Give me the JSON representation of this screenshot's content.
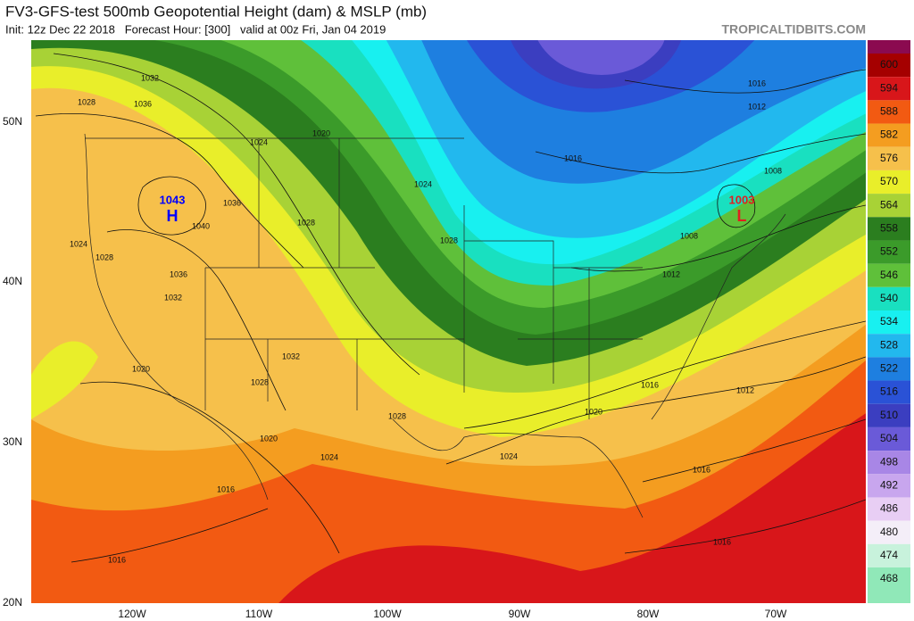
{
  "header": {
    "title": "FV3-GFS-test 500mb Geopotential Height (dam) & MSLP (mb)",
    "subtitle": "Init: 12z Dec 22 2018   Forecast Hour: [300]   valid at 00z Fri, Jan 04 2019",
    "watermark": "TROPICALTIDBITS.COM"
  },
  "map": {
    "lat_labels": [
      "50N",
      "40N",
      "30N",
      "20N"
    ],
    "lon_labels": [
      "120W",
      "110W",
      "100W",
      "90W",
      "80W",
      "70W"
    ],
    "pressure_centers": [
      {
        "label": "H",
        "value": 1043
      },
      {
        "label": "L",
        "value": 1003
      }
    ],
    "isobar_labels": [
      1032,
      1028,
      1036,
      1024,
      1020,
      1036,
      1040,
      1024,
      1028,
      1028,
      1024,
      1028,
      1036,
      1032,
      1032,
      1028,
      1020,
      1028,
      1020,
      1024,
      1016,
      1016,
      1024,
      1020,
      1016,
      1012,
      1016,
      1016,
      1016,
      1008,
      1012,
      1008,
      1012,
      1016
    ]
  },
  "colorbar": {
    "ticks": [
      600,
      594,
      588,
      582,
      576,
      570,
      564,
      558,
      552,
      546,
      540,
      534,
      528,
      522,
      516,
      510,
      504,
      498,
      492,
      486,
      480,
      474,
      468
    ],
    "colors": [
      "#8b0a50",
      "#a50000",
      "#d8161a",
      "#f25a12",
      "#f49d20",
      "#f6c04b",
      "#e9ee2a",
      "#a8d236",
      "#2b7e1f",
      "#3b9b2a",
      "#5fc03a",
      "#19e0c0",
      "#18f0f0",
      "#22b8ee",
      "#1e7fe0",
      "#2a52d6",
      "#3b3ec0",
      "#6a5ad8",
      "#a886e6",
      "#c8a6ee",
      "#e8cef4",
      "#f4eef8",
      "#c8f2dc",
      "#90e8b8"
    ]
  }
}
